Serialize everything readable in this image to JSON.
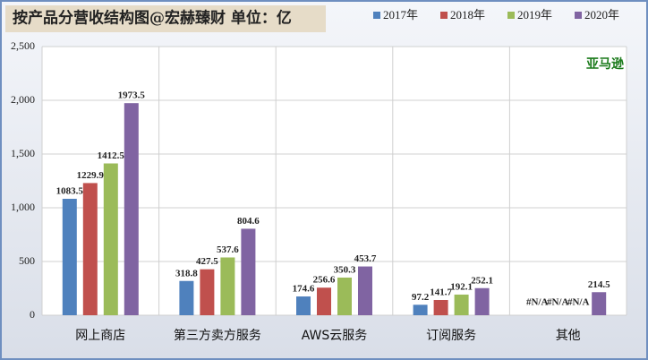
{
  "chart_data": {
    "type": "bar",
    "title": "按产品分营收结构图@宏赫臻财 单位：亿",
    "annotations": [
      "亚马逊"
    ],
    "categories": [
      "网上商店",
      "第三方卖方服务",
      "AWS云服务",
      "订阅服务",
      "其他"
    ],
    "series": [
      {
        "name": "2017年",
        "color": "#4f81bd",
        "values": [
          1083.5,
          318.8,
          174.6,
          97.2,
          null
        ],
        "value_labels": [
          "1083.5",
          "318.8",
          "174.6",
          "97.2",
          "#N/A"
        ]
      },
      {
        "name": "2018年",
        "color": "#c0504d",
        "values": [
          1229.9,
          427.5,
          256.6,
          141.7,
          null
        ],
        "value_labels": [
          "1229.9",
          "427.5",
          "256.6",
          "141.7",
          "#N/A"
        ]
      },
      {
        "name": "2019年",
        "color": "#9bbb59",
        "values": [
          1412.5,
          537.6,
          350.3,
          192.1,
          null
        ],
        "value_labels": [
          "1412.5",
          "537.6",
          "350.3",
          "192.1",
          "#N/A"
        ]
      },
      {
        "name": "2020年",
        "color": "#8064a2",
        "values": [
          1973.5,
          804.6,
          453.7,
          252.1,
          214.5
        ],
        "value_labels": [
          "1973.5",
          "804.6",
          "453.7",
          "252.1",
          "214.5"
        ]
      }
    ],
    "ylim": [
      0,
      2500
    ],
    "yticks": [
      0,
      500,
      {
        "value": 1000,
        "label": "1,000"
      },
      {
        "value": 1500,
        "label": "1,500"
      },
      {
        "value": 2000,
        "label": "2,000"
      },
      {
        "value": 2500,
        "label": "2,500"
      }
    ],
    "grid": true,
    "legend": "top"
  }
}
